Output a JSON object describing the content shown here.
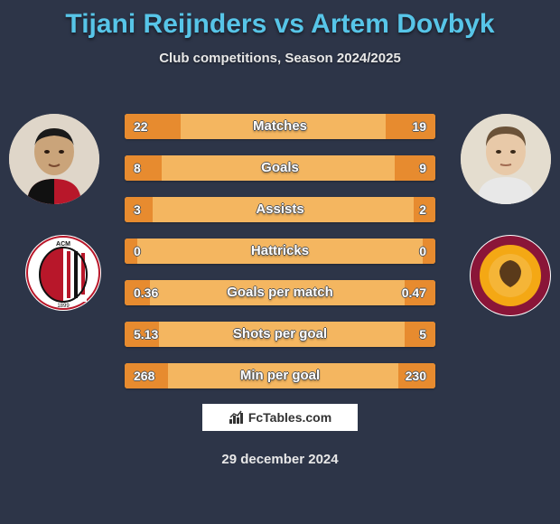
{
  "title": "Tijani Reijnders vs Artem Dovbyk",
  "subtitle": "Club competitions, Season 2024/2025",
  "date": "29 december 2024",
  "footer_label": "FcTables.com",
  "colors": {
    "background": "#2d3548",
    "title": "#57c5e8",
    "bar_base": "#f4b660",
    "bar_highlight": "#e78b2f",
    "text": "#ffffff"
  },
  "players": {
    "left": {
      "name": "Tijani Reijnders",
      "club": "AC Milan"
    },
    "right": {
      "name": "Artem Dovbyk",
      "club": "Roma"
    }
  },
  "bars": [
    {
      "label": "Matches",
      "left": "22",
      "right": "19",
      "left_pct": 18,
      "right_pct": 16
    },
    {
      "label": "Goals",
      "left": "8",
      "right": "9",
      "left_pct": 12,
      "right_pct": 13
    },
    {
      "label": "Assists",
      "left": "3",
      "right": "2",
      "left_pct": 9,
      "right_pct": 7
    },
    {
      "label": "Hattricks",
      "left": "0",
      "right": "0",
      "left_pct": 4,
      "right_pct": 4
    },
    {
      "label": "Goals per match",
      "left": "0.36",
      "right": "0.47",
      "left_pct": 8,
      "right_pct": 10
    },
    {
      "label": "Shots per goal",
      "left": "5.13",
      "right": "5",
      "left_pct": 11,
      "right_pct": 10
    },
    {
      "label": "Min per goal",
      "left": "268",
      "right": "230",
      "left_pct": 14,
      "right_pct": 12
    }
  ]
}
